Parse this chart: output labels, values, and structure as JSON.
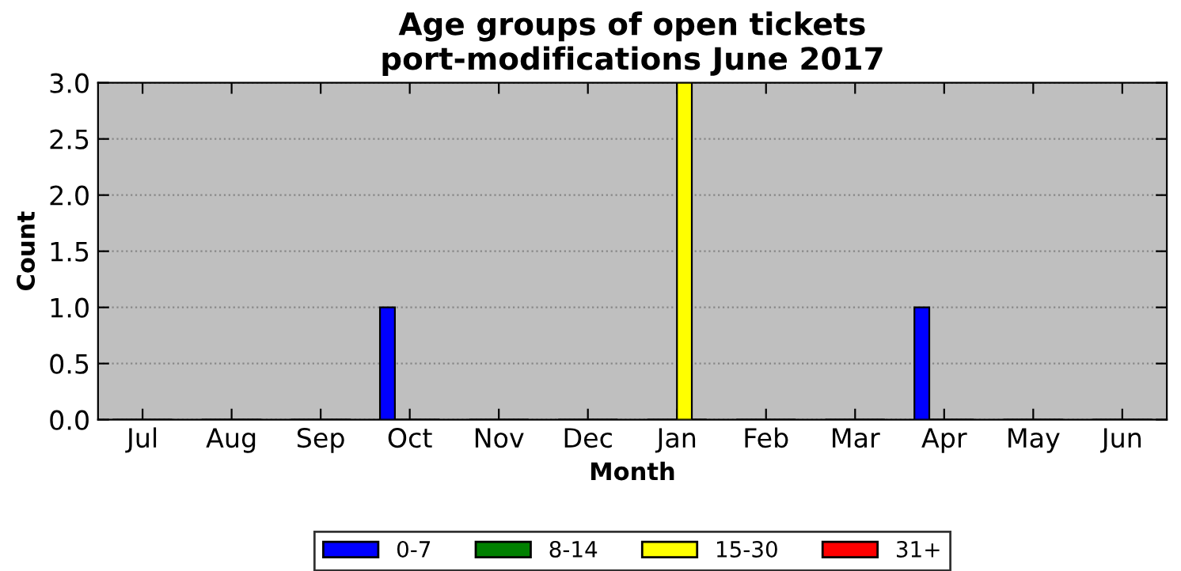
{
  "chart_data": {
    "type": "bar",
    "title": "Age groups of open tickets\nport-modifications June 2017",
    "xlabel": "Month",
    "ylabel": "Count",
    "categories": [
      "Jul",
      "Aug",
      "Sep",
      "Oct",
      "Nov",
      "Dec",
      "Jan",
      "Feb",
      "Mar",
      "Apr",
      "May",
      "Jun"
    ],
    "series": [
      {
        "name": "0-7",
        "color": "#0000ff",
        "values": [
          0,
          0,
          0,
          1,
          0,
          0,
          0,
          0,
          0,
          1,
          0,
          0
        ]
      },
      {
        "name": "8-14",
        "color": "#008000",
        "values": [
          0,
          0,
          0,
          0,
          0,
          0,
          0,
          0,
          0,
          0,
          0,
          0
        ]
      },
      {
        "name": "15-30",
        "color": "#ffff00",
        "values": [
          0,
          0,
          0,
          0,
          0,
          0,
          3,
          0,
          0,
          0,
          0,
          0
        ]
      },
      {
        "name": "31+",
        "color": "#ff0000",
        "values": [
          0,
          0,
          0,
          0,
          0,
          0,
          0,
          0,
          0,
          0,
          0,
          0
        ]
      }
    ],
    "ylim": [
      0,
      3
    ],
    "yticks": [
      {
        "value": 0,
        "label": "0.0"
      },
      0.5,
      {
        "value": 1,
        "label": "1.0"
      },
      1.5,
      {
        "value": 2,
        "label": "2.0"
      },
      2.5,
      {
        "value": 3,
        "label": "3.0"
      }
    ],
    "grid": "y",
    "legend": "bottom"
  }
}
